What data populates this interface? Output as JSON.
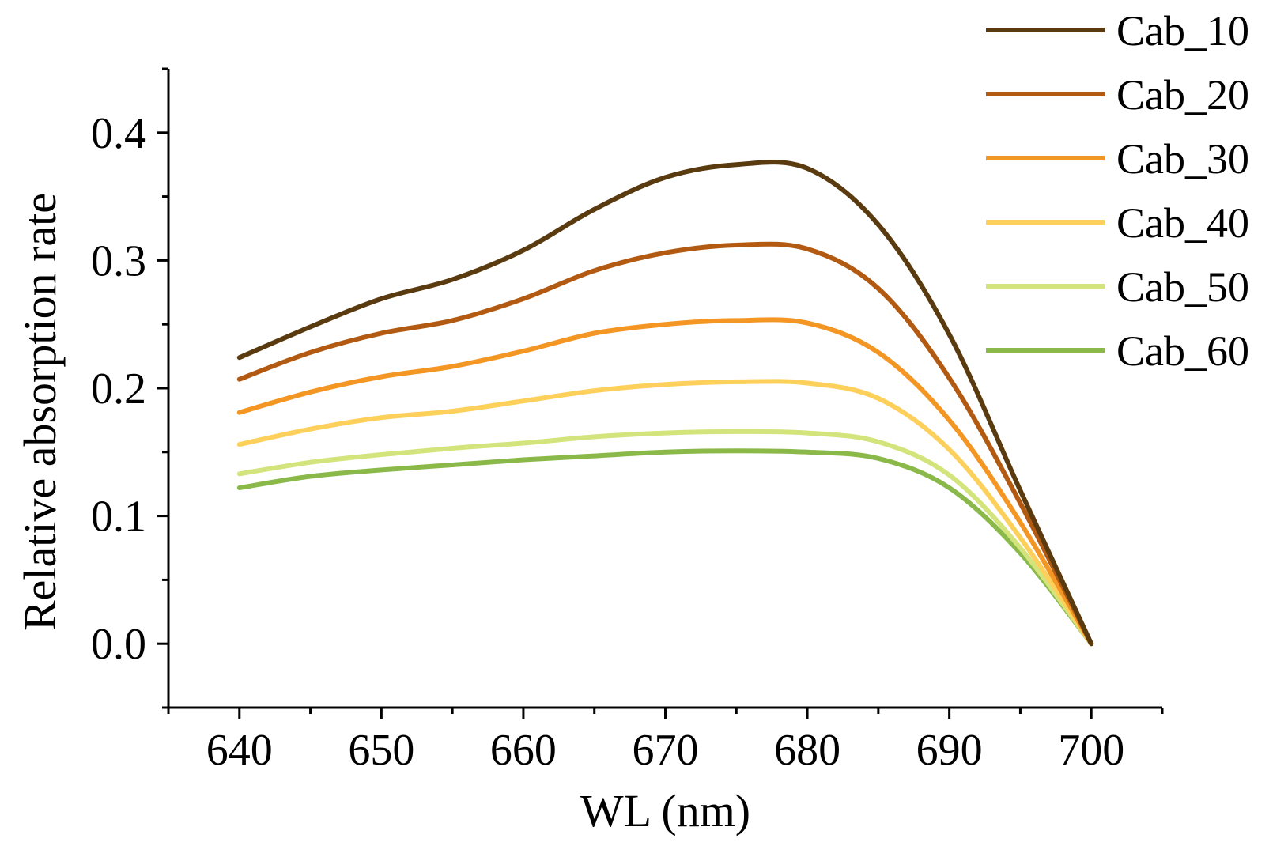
{
  "chart_data": {
    "type": "line",
    "title": "",
    "xlabel": "WL (nm)",
    "ylabel": "Relative absorption rate",
    "xlim": [
      635,
      705
    ],
    "ylim": [
      -0.05,
      0.45
    ],
    "xticks": [
      640,
      650,
      660,
      670,
      680,
      690,
      700
    ],
    "xtick_labels": [
      "640",
      "650",
      "660",
      "670",
      "680",
      "690",
      "700"
    ],
    "yticks": [
      0.0,
      0.1,
      0.2,
      0.3,
      0.4
    ],
    "ytick_labels": [
      "0.0",
      "0.1",
      "0.2",
      "0.3",
      "0.4"
    ],
    "grid": false,
    "legend_position": "top-right",
    "x": [
      640,
      645,
      650,
      655,
      660,
      665,
      670,
      675,
      680,
      685,
      690,
      695,
      700
    ],
    "series": [
      {
        "name": "Cab_10",
        "color": "#5a3a0f",
        "values": [
          0.224,
          0.248,
          0.27,
          0.285,
          0.308,
          0.34,
          0.365,
          0.375,
          0.372,
          0.328,
          0.242,
          0.12,
          0.0
        ]
      },
      {
        "name": "Cab_20",
        "color": "#b35a12",
        "values": [
          0.207,
          0.228,
          0.243,
          0.253,
          0.27,
          0.292,
          0.306,
          0.312,
          0.309,
          0.278,
          0.208,
          0.11,
          0.0
        ]
      },
      {
        "name": "Cab_30",
        "color": "#f39624",
        "values": [
          0.181,
          0.197,
          0.209,
          0.217,
          0.229,
          0.243,
          0.25,
          0.253,
          0.251,
          0.228,
          0.175,
          0.095,
          0.0
        ]
      },
      {
        "name": "Cab_40",
        "color": "#fcd05b",
        "values": [
          0.156,
          0.168,
          0.177,
          0.182,
          0.19,
          0.198,
          0.203,
          0.205,
          0.204,
          0.192,
          0.152,
          0.083,
          0.0
        ]
      },
      {
        "name": "Cab_50",
        "color": "#d2e47b",
        "values": [
          0.133,
          0.142,
          0.148,
          0.153,
          0.157,
          0.162,
          0.165,
          0.166,
          0.165,
          0.158,
          0.132,
          0.075,
          0.0
        ]
      },
      {
        "name": "Cab_60",
        "color": "#8ab94a",
        "values": [
          0.122,
          0.131,
          0.136,
          0.14,
          0.144,
          0.147,
          0.15,
          0.151,
          0.15,
          0.145,
          0.122,
          0.071,
          0.0
        ]
      }
    ]
  }
}
